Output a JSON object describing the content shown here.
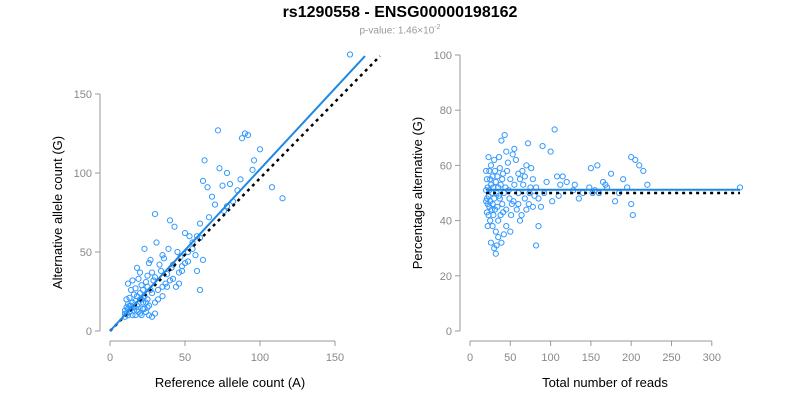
{
  "header": {
    "title": "rs1290558 - ENSG00000198162",
    "pvalue_prefix": "p-value: 1.46×10",
    "pvalue_exponent": "-2"
  },
  "colors": {
    "points": "#3399ff",
    "fit": "#1e88e5",
    "reference": "#000000",
    "axis": "#999999"
  },
  "chart_data": [
    {
      "type": "scatter",
      "name": "allele-count-plot",
      "title": "",
      "xlabel": "Reference allele count (A)",
      "ylabel": "Alternative allele count (G)",
      "xlim": [
        0,
        160
      ],
      "ylim": [
        0,
        150
      ],
      "xticks": [
        0,
        50,
        100,
        150
      ],
      "yticks": [
        0,
        50,
        100,
        150
      ],
      "fit_line": {
        "x": [
          0,
          170
        ],
        "y": [
          0,
          174
        ]
      },
      "reference_line": {
        "x": [
          0,
          180
        ],
        "y": [
          0,
          174
        ]
      },
      "points": [
        [
          160,
          175
        ],
        [
          115,
          84
        ],
        [
          108,
          91
        ],
        [
          100,
          115
        ],
        [
          96,
          108
        ],
        [
          95,
          102
        ],
        [
          92,
          124
        ],
        [
          90,
          125
        ],
        [
          88,
          122
        ],
        [
          87,
          96
        ],
        [
          85,
          89
        ],
        [
          82,
          82
        ],
        [
          80,
          93
        ],
        [
          78,
          100
        ],
        [
          78,
          79
        ],
        [
          76,
          76
        ],
        [
          75,
          92
        ],
        [
          73,
          103
        ],
        [
          72,
          127
        ],
        [
          70,
          80
        ],
        [
          68,
          85
        ],
        [
          66,
          72
        ],
        [
          65,
          91
        ],
        [
          63,
          108
        ],
        [
          62,
          95
        ],
        [
          60,
          68
        ],
        [
          60,
          59
        ],
        [
          58,
          60
        ],
        [
          57,
          48
        ],
        [
          55,
          56
        ],
        [
          53,
          60
        ],
        [
          52,
          50
        ],
        [
          50,
          62
        ],
        [
          50,
          43
        ],
        [
          48,
          38
        ],
        [
          47,
          47
        ],
        [
          46,
          37
        ],
        [
          45,
          50
        ],
        [
          43,
          66
        ],
        [
          42,
          42
        ],
        [
          41,
          40
        ],
        [
          40,
          70
        ],
        [
          40,
          32
        ],
        [
          39,
          52
        ],
        [
          38,
          36
        ],
        [
          37,
          30
        ],
        [
          36,
          46
        ],
        [
          35,
          28
        ],
        [
          34,
          38
        ],
        [
          33,
          42
        ],
        [
          32,
          20
        ],
        [
          31,
          56
        ],
        [
          30,
          34
        ],
        [
          30,
          74
        ],
        [
          29,
          32
        ],
        [
          28,
          24
        ],
        [
          28,
          37
        ],
        [
          27,
          26
        ],
        [
          26,
          16
        ],
        [
          26,
          43
        ],
        [
          25,
          28
        ],
        [
          25,
          20
        ],
        [
          24,
          18
        ],
        [
          24,
          31
        ],
        [
          23,
          22
        ],
        [
          23,
          52
        ],
        [
          22,
          14
        ],
        [
          22,
          26
        ],
        [
          21,
          20
        ],
        [
          21,
          29
        ],
        [
          20,
          24
        ],
        [
          20,
          11
        ],
        [
          19,
          33
        ],
        [
          19,
          17
        ],
        [
          18,
          22
        ],
        [
          18,
          13
        ],
        [
          17,
          27
        ],
        [
          17,
          19
        ],
        [
          16,
          15
        ],
        [
          16,
          23
        ],
        [
          15,
          18
        ],
        [
          15,
          10
        ],
        [
          14,
          26
        ],
        [
          14,
          14
        ],
        [
          13,
          21
        ],
        [
          13,
          12
        ],
        [
          12,
          17
        ],
        [
          12,
          10
        ],
        [
          11,
          15
        ],
        [
          11,
          20
        ],
        [
          10,
          11
        ],
        [
          10,
          13
        ],
        [
          12,
          30
        ],
        [
          15,
          32
        ],
        [
          18,
          40
        ],
        [
          20,
          37
        ],
        [
          25,
          35
        ],
        [
          27,
          45
        ],
        [
          22,
          18
        ],
        [
          20,
          20
        ],
        [
          18,
          16
        ],
        [
          16,
          13
        ],
        [
          14,
          16
        ],
        [
          13,
          16
        ],
        [
          12,
          14
        ],
        [
          11,
          11
        ],
        [
          10,
          9
        ],
        [
          24,
          12
        ],
        [
          26,
          10
        ],
        [
          28,
          9
        ],
        [
          30,
          11
        ],
        [
          17,
          10
        ],
        [
          19,
          12
        ],
        [
          21,
          10
        ],
        [
          23,
          14
        ],
        [
          25,
          15
        ],
        [
          30,
          18
        ],
        [
          32,
          26
        ],
        [
          35,
          22
        ],
        [
          38,
          28
        ],
        [
          42,
          33
        ],
        [
          44,
          28
        ],
        [
          46,
          30
        ],
        [
          48,
          41
        ],
        [
          52,
          44
        ],
        [
          55,
          52
        ],
        [
          58,
          38
        ],
        [
          60,
          26
        ],
        [
          62,
          45
        ],
        [
          35,
          48
        ]
      ]
    },
    {
      "type": "scatter",
      "name": "percentage-plot",
      "title": "",
      "xlabel": "Total number of reads",
      "ylabel": "Percentage alternative (G)",
      "xlim": [
        0,
        335
      ],
      "ylim": [
        0,
        100
      ],
      "xticks": [
        0,
        50,
        100,
        150,
        200,
        250,
        300
      ],
      "yticks": [
        0,
        20,
        40,
        60,
        80,
        100
      ],
      "fit_line": {
        "x": [
          20,
          335
        ],
        "y": [
          51.2,
          51.2
        ]
      },
      "reference_line": {
        "x": [
          20,
          335
        ],
        "y": [
          50,
          50
        ]
      },
      "points": [
        [
          335,
          52
        ],
        [
          220,
          53
        ],
        [
          215,
          58
        ],
        [
          210,
          60
        ],
        [
          205,
          62
        ],
        [
          200,
          63
        ],
        [
          200,
          46
        ],
        [
          202,
          42
        ],
        [
          195,
          52
        ],
        [
          190,
          55
        ],
        [
          185,
          50
        ],
        [
          180,
          47
        ],
        [
          175,
          57
        ],
        [
          170,
          52
        ],
        [
          168,
          53
        ],
        [
          165,
          54
        ],
        [
          160,
          50
        ],
        [
          158,
          60
        ],
        [
          155,
          51
        ],
        [
          152,
          50
        ],
        [
          150,
          59
        ],
        [
          148,
          52
        ],
        [
          140,
          50
        ],
        [
          135,
          48
        ],
        [
          130,
          53
        ],
        [
          128,
          51
        ],
        [
          120,
          54
        ],
        [
          115,
          56
        ],
        [
          112,
          53
        ],
        [
          110,
          49
        ],
        [
          108,
          56
        ],
        [
          105,
          73
        ],
        [
          102,
          47
        ],
        [
          100,
          65
        ],
        [
          95,
          54
        ],
        [
          92,
          50
        ],
        [
          90,
          67
        ],
        [
          88,
          45
        ],
        [
          85,
          38
        ],
        [
          82,
          31
        ],
        [
          80,
          49
        ],
        [
          78,
          55
        ],
        [
          75,
          52
        ],
        [
          73,
          46
        ],
        [
          72,
          68
        ],
        [
          70,
          60
        ],
        [
          68,
          48
        ],
        [
          66,
          53
        ],
        [
          65,
          58
        ],
        [
          64,
          42
        ],
        [
          62,
          40
        ],
        [
          60,
          50
        ],
        [
          60,
          57
        ],
        [
          58,
          44
        ],
        [
          57,
          62
        ],
        [
          55,
          53
        ],
        [
          54,
          47
        ],
        [
          53,
          64
        ],
        [
          52,
          46
        ],
        [
          51,
          42
        ],
        [
          50,
          55
        ],
        [
          50,
          36
        ],
        [
          49,
          48
        ],
        [
          48,
          51
        ],
        [
          47,
          61
        ],
        [
          46,
          58
        ],
        [
          45,
          44
        ],
        [
          45,
          38
        ],
        [
          44,
          52
        ],
        [
          43,
          71
        ],
        [
          42,
          50
        ],
        [
          42,
          35
        ],
        [
          41,
          57
        ],
        [
          41,
          43
        ],
        [
          40,
          55
        ],
        [
          40,
          46
        ],
        [
          39,
          69
        ],
        [
          39,
          32
        ],
        [
          38,
          53
        ],
        [
          38,
          42
        ],
        [
          37,
          59
        ],
        [
          37,
          48
        ],
        [
          36,
          49
        ],
        [
          36,
          63
        ],
        [
          35,
          40
        ],
        [
          35,
          52
        ],
        [
          34,
          45
        ],
        [
          34,
          56
        ],
        [
          33,
          31
        ],
        [
          33,
          50
        ],
        [
          32,
          54
        ],
        [
          32,
          36
        ],
        [
          31,
          44
        ],
        [
          31,
          58
        ],
        [
          30,
          48
        ],
        [
          30,
          30
        ],
        [
          30,
          62
        ],
        [
          29,
          42
        ],
        [
          29,
          52
        ],
        [
          28,
          46
        ],
        [
          28,
          38
        ],
        [
          28,
          56
        ],
        [
          27,
          50
        ],
        [
          27,
          44
        ],
        [
          26,
          53
        ],
        [
          26,
          32
        ],
        [
          26,
          60
        ],
        [
          25,
          47
        ],
        [
          25,
          40
        ],
        [
          25,
          55
        ],
        [
          24,
          45
        ],
        [
          24,
          51
        ],
        [
          24,
          58
        ],
        [
          23,
          49
        ],
        [
          23,
          42
        ],
        [
          23,
          63
        ],
        [
          22,
          52
        ],
        [
          22,
          46
        ],
        [
          22,
          38
        ],
        [
          21,
          55
        ],
        [
          21,
          48
        ],
        [
          21,
          43
        ],
        [
          20,
          51
        ],
        [
          20,
          47
        ],
        [
          20,
          58
        ],
        [
          60,
          46
        ],
        [
          62,
          55
        ],
        [
          68,
          56
        ],
        [
          70,
          44
        ],
        [
          74,
          50
        ],
        [
          76,
          59
        ],
        [
          78,
          45
        ],
        [
          82,
          52
        ],
        [
          85,
          48
        ],
        [
          55,
          66
        ],
        [
          45,
          65
        ],
        [
          35,
          34
        ],
        [
          32,
          28
        ]
      ]
    }
  ]
}
